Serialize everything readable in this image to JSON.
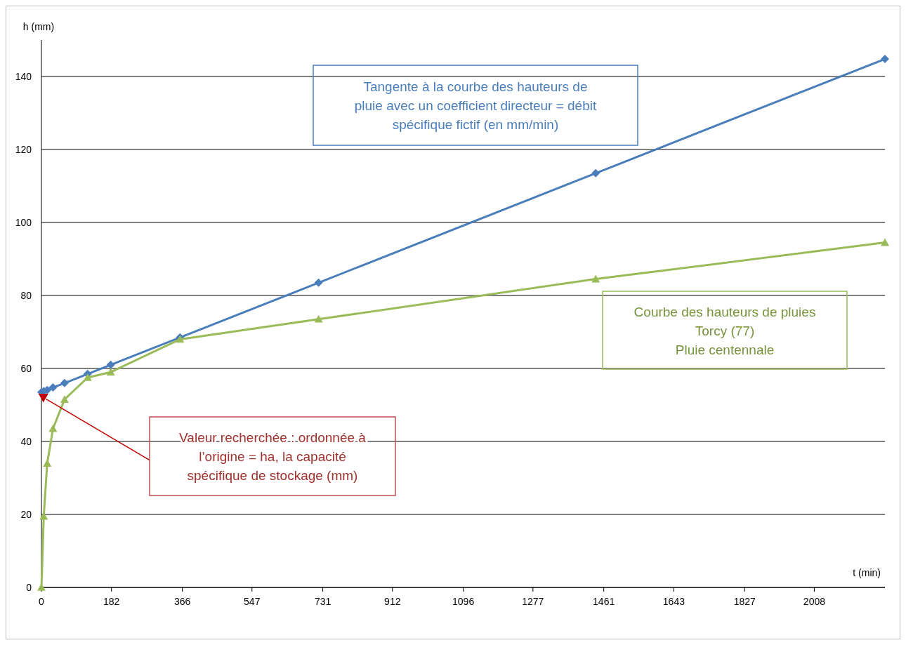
{
  "chart_data": {
    "type": "line",
    "xlabel": "t (min)",
    "ylabel": "h (mm)",
    "xlim": [
      0,
      2191.5
    ],
    "ylim": [
      0,
      150
    ],
    "xticks": [
      0,
      182,
      366,
      547,
      731,
      912,
      1096,
      1277,
      1461,
      1643,
      1827,
      2008
    ],
    "yticks": [
      0,
      20,
      40,
      60,
      80,
      100,
      120,
      140
    ],
    "grid": "y",
    "series": [
      {
        "color": "#4a7ebb",
        "marker": "diamond",
        "x": [
          0,
          6,
          15,
          30,
          60,
          120,
          180,
          360,
          720,
          1440,
          2191.5
        ],
        "values": [
          53.5,
          53.8,
          54.1,
          54.8,
          56,
          58.5,
          61,
          68.5,
          83.5,
          113.5,
          144.8
        ]
      },
      {
        "color": "#9bbb59",
        "marker": "triangle",
        "x": [
          0,
          6,
          15,
          30,
          60,
          120,
          180,
          360,
          720,
          1440,
          2191.5
        ],
        "values": [
          0,
          19.5,
          34,
          43.5,
          51.5,
          57.5,
          59,
          68,
          73.5,
          84.5,
          94.5
        ]
      },
      {
        "type": "scatter",
        "color": "#c00000",
        "marker": "triangle",
        "x": [
          5
        ],
        "values": [
          52
        ]
      }
    ],
    "annotations": [
      "Tangente à la courbe des hauteurs de\npluie avec un coefficient directeur = débit\nspécifique fictif (en mm/min)",
      "Courbe des hauteurs de pluies\nTorcy (77)\nPluie centennale",
      "Valeur recherchée : ordonnée à\nl’origine = ha, la capacité\nspécifique de stockage (mm)"
    ]
  }
}
